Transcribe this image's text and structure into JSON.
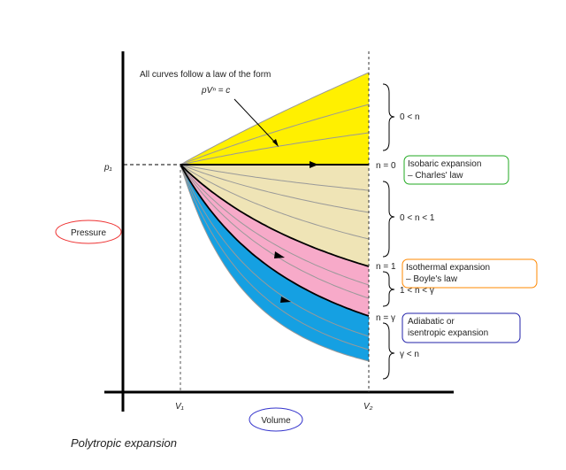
{
  "annotation": {
    "text": "All curves follow a law of the form",
    "formula": "pVⁿ = c"
  },
  "axes": {
    "y_label": "Pressure",
    "x_label": "Volume",
    "p1": "p₁",
    "v1": "V₁",
    "v2": "V₂"
  },
  "curve_labels": [
    "n = 0",
    "n = 1",
    "n = γ"
  ],
  "ranges": [
    "0 < n",
    "0 < n < 1",
    "1 < n < γ",
    "γ < n"
  ],
  "processes": [
    {
      "lines": [
        "Isobaric expansion",
        "– Charles' law"
      ]
    },
    {
      "lines": [
        "Isothermal expansion",
        "– Boyle's law"
      ]
    },
    {
      "lines": [
        "Adiabatic or",
        "isentropic expansion"
      ]
    }
  ],
  "caption": "Polytropic expansion"
}
